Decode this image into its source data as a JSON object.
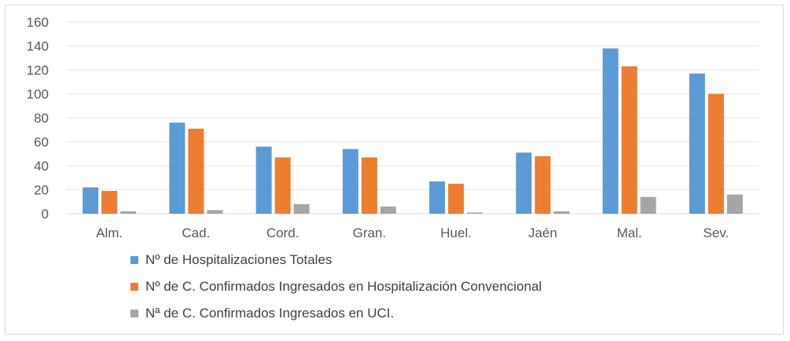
{
  "chart_data": {
    "type": "bar",
    "categories": [
      "Alm.",
      "Cad.",
      "Cord.",
      "Gran.",
      "Huel.",
      "Jaén",
      "Mal.",
      "Sev."
    ],
    "series": [
      {
        "name": "Nº de Hospitalizaciones Totales",
        "color": "#5b9bd5",
        "values": [
          22,
          76,
          56,
          54,
          27,
          51,
          138,
          117
        ]
      },
      {
        "name": "Nº de C. Confirmados Ingresados en Hospitalización Convencional",
        "color": "#ed7d31",
        "values": [
          19,
          71,
          47,
          47,
          25,
          48,
          123,
          100
        ]
      },
      {
        "name": "Nª de C. Confirmados Ingresados en UCI.",
        "color": "#a5a5a5",
        "values": [
          2,
          3,
          8,
          6,
          1,
          2,
          14,
          16
        ]
      }
    ],
    "yticks": [
      "0",
      "20",
      "40",
      "60",
      "80",
      "100",
      "120",
      "140",
      "160"
    ],
    "ylim": [
      0,
      160
    ],
    "grid": true,
    "legend_position": "bottom"
  }
}
